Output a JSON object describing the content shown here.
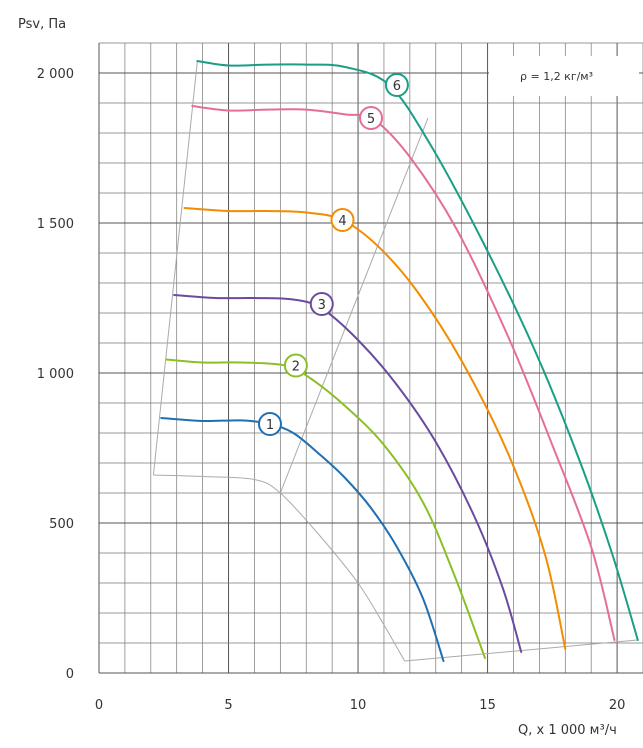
{
  "chart_data": {
    "type": "line",
    "title": "",
    "ylabel": "Psv, Па",
    "xlabel": "Q, x 1 000 м³/ч",
    "note": "ρ = 1,2 кг/м³",
    "xlim": [
      0,
      21
    ],
    "ylim": [
      0,
      2100
    ],
    "xticks": [
      {
        "value": 0,
        "label": "0"
      },
      {
        "value": 5,
        "label": "5"
      },
      {
        "value": 10,
        "label": "10"
      },
      {
        "value": 15,
        "label": "15"
      },
      {
        "value": 20,
        "label": "20"
      }
    ],
    "yticks": [
      {
        "value": 0,
        "label": "0"
      },
      {
        "value": 500,
        "label": "500"
      },
      {
        "value": 1000,
        "label": "1 000"
      },
      {
        "value": 1500,
        "label": "1 500"
      },
      {
        "value": 2000,
        "label": "2 000"
      }
    ],
    "grid": true,
    "series": [
      {
        "label": "1",
        "color": "#1f6fb2",
        "points": [
          [
            2.4,
            850
          ],
          [
            4.0,
            840
          ],
          [
            5.5,
            842
          ],
          [
            6.6,
            830
          ],
          [
            7.5,
            800
          ],
          [
            8.5,
            730
          ],
          [
            9.5,
            650
          ],
          [
            10.5,
            550
          ],
          [
            11.5,
            420
          ],
          [
            12.5,
            250
          ],
          [
            13.3,
            40
          ]
        ],
        "marker": [
          6.6,
          830
        ]
      },
      {
        "label": "2",
        "color": "#8cbf26",
        "points": [
          [
            2.6,
            1045
          ],
          [
            4.0,
            1035
          ],
          [
            5.5,
            1035
          ],
          [
            7.2,
            1025
          ],
          [
            8.2,
            980
          ],
          [
            9.5,
            890
          ],
          [
            11.0,
            760
          ],
          [
            12.5,
            570
          ],
          [
            13.7,
            330
          ],
          [
            14.9,
            50
          ]
        ],
        "marker": [
          7.6,
          1025
        ]
      },
      {
        "label": "3",
        "color": "#6b4b9e",
        "points": [
          [
            2.9,
            1260
          ],
          [
            4.5,
            1250
          ],
          [
            6.0,
            1250
          ],
          [
            7.5,
            1245
          ],
          [
            8.6,
            1215
          ],
          [
            10.0,
            1110
          ],
          [
            11.5,
            960
          ],
          [
            13.0,
            770
          ],
          [
            14.5,
            520
          ],
          [
            15.6,
            280
          ],
          [
            16.3,
            70
          ]
        ],
        "marker": [
          8.6,
          1230
        ]
      },
      {
        "label": "4",
        "color": "#f28c00",
        "points": [
          [
            3.3,
            1550
          ],
          [
            5.0,
            1540
          ],
          [
            6.5,
            1540
          ],
          [
            8.0,
            1535
          ],
          [
            9.4,
            1510
          ],
          [
            10.8,
            1420
          ],
          [
            12.3,
            1270
          ],
          [
            14.0,
            1040
          ],
          [
            15.8,
            730
          ],
          [
            17.2,
            400
          ],
          [
            18.0,
            80
          ]
        ],
        "marker": [
          9.4,
          1510
        ]
      },
      {
        "label": "5",
        "color": "#e56d9a",
        "points": [
          [
            3.6,
            1890
          ],
          [
            5.0,
            1875
          ],
          [
            6.5,
            1878
          ],
          [
            8.0,
            1878
          ],
          [
            9.5,
            1862
          ],
          [
            10.6,
            1845
          ],
          [
            12.0,
            1720
          ],
          [
            13.8,
            1480
          ],
          [
            15.8,
            1120
          ],
          [
            17.5,
            760
          ],
          [
            19.0,
            420
          ],
          [
            19.9,
            110
          ]
        ],
        "marker": [
          10.5,
          1850
        ]
      },
      {
        "label": "6",
        "color": "#1a9e86",
        "points": [
          [
            3.8,
            2040
          ],
          [
            5.0,
            2025
          ],
          [
            6.5,
            2028
          ],
          [
            8.0,
            2028
          ],
          [
            9.5,
            2020
          ],
          [
            11.2,
            1960
          ],
          [
            12.8,
            1760
          ],
          [
            14.8,
            1440
          ],
          [
            16.8,
            1080
          ],
          [
            18.5,
            720
          ],
          [
            19.8,
            400
          ],
          [
            20.8,
            110
          ]
        ],
        "marker": [
          11.5,
          1960
        ]
      }
    ],
    "envelope": {
      "color": "#aaaaaa",
      "left": [
        [
          3.8,
          2040
        ],
        [
          2.1,
          660
        ]
      ],
      "bottom_curve": [
        [
          2.1,
          660
        ],
        [
          4.0,
          655
        ],
        [
          6.0,
          645
        ],
        [
          7.0,
          600
        ],
        [
          8.5,
          460
        ],
        [
          10.0,
          300
        ],
        [
          11.0,
          160
        ],
        [
          11.8,
          40
        ]
      ],
      "right_line": [
        [
          11.8,
          40
        ],
        [
          20.8,
          110
        ]
      ],
      "system_line": [
        [
          7.0,
          600
        ],
        [
          12.7,
          1850
        ]
      ]
    }
  }
}
